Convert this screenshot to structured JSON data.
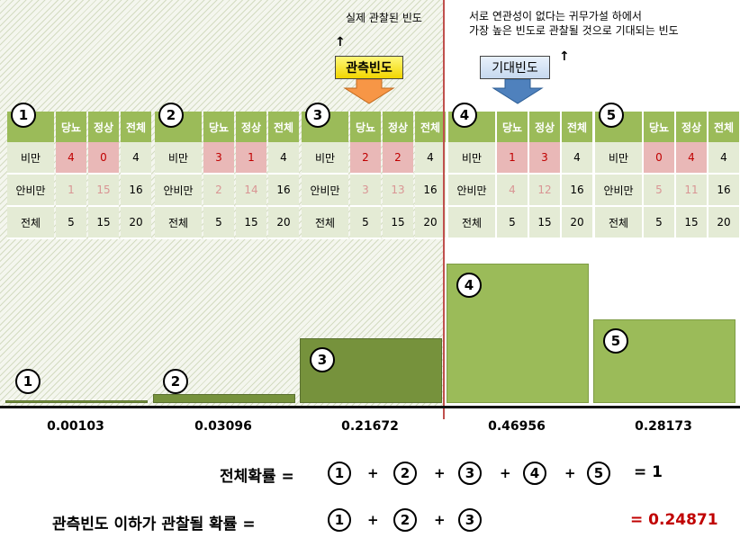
{
  "annotations": {
    "observed_note": "실제 관찰된 빈도",
    "expected_note_line1": "서로 연관성이 없다는 귀무가설 하에서",
    "expected_note_line2": "가장 높은 빈도로 관찰될 것으로 기대되는 빈도",
    "observed_label": "관측빈도",
    "expected_label": "기대빈도"
  },
  "table_header": {
    "col1": "당뇨",
    "col2": "정상",
    "col3": "전체"
  },
  "row_labels": {
    "r1": "비만",
    "r2": "안비만",
    "r3": "전체"
  },
  "tables": [
    {
      "num": "1",
      "cells": [
        "4",
        "0",
        "4",
        "1",
        "15",
        "16",
        "5",
        "15",
        "20"
      ]
    },
    {
      "num": "2",
      "cells": [
        "3",
        "1",
        "4",
        "2",
        "14",
        "16",
        "5",
        "15",
        "20"
      ]
    },
    {
      "num": "3",
      "cells": [
        "2",
        "2",
        "4",
        "3",
        "13",
        "16",
        "5",
        "15",
        "20"
      ]
    },
    {
      "num": "4",
      "cells": [
        "1",
        "3",
        "4",
        "4",
        "12",
        "16",
        "5",
        "15",
        "20"
      ]
    },
    {
      "num": "5",
      "cells": [
        "0",
        "4",
        "4",
        "5",
        "11",
        "16",
        "5",
        "15",
        "20"
      ]
    }
  ],
  "chart_data": {
    "type": "bar",
    "categories": [
      "1",
      "2",
      "3",
      "4",
      "5"
    ],
    "values": [
      0.00103,
      0.03096,
      0.21672,
      0.46956,
      0.28173
    ],
    "value_labels": [
      "0.00103",
      "0.03096",
      "0.21672",
      "0.46956",
      "0.28173"
    ],
    "colors": [
      "#76923c",
      "#76923c",
      "#76923c",
      "#9bbb59",
      "#9bbb59"
    ]
  },
  "equations": {
    "total_label": "전체확률 =",
    "plus": "+",
    "total_result": "= 1",
    "below_label": "관측빈도 이하가 관찰될 확률 =",
    "below_result": "= 0.24871",
    "n1": "1",
    "n2": "2",
    "n3": "3",
    "n4": "4",
    "n5": "5"
  },
  "icons": {
    "up_arrow": "↑"
  }
}
